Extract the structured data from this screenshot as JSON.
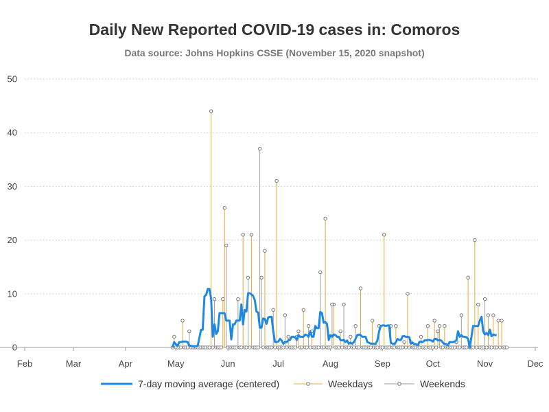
{
  "chart_data": {
    "type": "line",
    "title": "Daily New Reported COVID-19 cases in: Comoros",
    "subtitle": "Data source: Johns Hopkins CSSE (November 15, 2020 snapshot)",
    "xlabel": "",
    "ylabel": "",
    "x_range": [
      "2020-02-01",
      "2020-12-01"
    ],
    "ylim": [
      0,
      50
    ],
    "y_ticks": [
      0,
      10,
      20,
      30,
      40,
      50
    ],
    "x_ticks": [
      {
        "date": "2020-02-01",
        "label": "Feb"
      },
      {
        "date": "2020-03-01",
        "label": "Mar"
      },
      {
        "date": "2020-04-01",
        "label": "Apr"
      },
      {
        "date": "2020-05-01",
        "label": "May"
      },
      {
        "date": "2020-06-01",
        "label": "Jun"
      },
      {
        "date": "2020-07-01",
        "label": "Jul"
      },
      {
        "date": "2020-08-01",
        "label": "Aug"
      },
      {
        "date": "2020-09-01",
        "label": "Sep"
      },
      {
        "date": "2020-10-01",
        "label": "Oct"
      },
      {
        "date": "2020-11-01",
        "label": "Nov"
      },
      {
        "date": "2020-12-01",
        "label": "Dec"
      }
    ],
    "grid": "horizontal dotted",
    "legend_position": "bottom",
    "series": [
      {
        "name": "7-day moving average (centered)",
        "color": "#1e88e5",
        "style": "line",
        "points": [
          [
            "2020-04-29",
            0
          ],
          [
            "2020-04-30",
            1.0
          ],
          [
            "2020-05-01",
            0.6
          ],
          [
            "2020-05-02",
            0.3
          ],
          [
            "2020-05-03",
            1.0
          ],
          [
            "2020-05-04",
            1.0
          ],
          [
            "2020-05-05",
            1.1
          ],
          [
            "2020-05-06",
            1.1
          ],
          [
            "2020-05-07",
            1.1
          ],
          [
            "2020-05-08",
            1.0
          ],
          [
            "2020-05-09",
            0.4
          ],
          [
            "2020-05-10",
            0.3
          ],
          [
            "2020-05-12",
            0.2
          ],
          [
            "2020-05-14",
            0.3
          ],
          [
            "2020-05-16",
            3.3
          ],
          [
            "2020-05-17",
            3.3
          ],
          [
            "2020-05-18",
            9.5
          ],
          [
            "2020-05-19",
            9.8
          ],
          [
            "2020-05-20",
            10.9
          ],
          [
            "2020-05-21",
            10.9
          ],
          [
            "2020-05-22",
            9.0
          ],
          [
            "2020-05-23",
            2.0
          ],
          [
            "2020-05-24",
            4.3
          ],
          [
            "2020-05-25",
            2.5
          ],
          [
            "2020-05-26",
            3.0
          ],
          [
            "2020-05-27",
            6.4
          ],
          [
            "2020-05-28",
            6.4
          ],
          [
            "2020-05-29",
            6.4
          ],
          [
            "2020-05-30",
            6.4
          ],
          [
            "2020-05-31",
            5.0
          ],
          [
            "2020-06-01",
            5.0
          ],
          [
            "2020-06-02",
            5.0
          ],
          [
            "2020-06-03",
            1.5
          ],
          [
            "2020-06-04",
            4.3
          ],
          [
            "2020-06-05",
            4.3
          ],
          [
            "2020-06-06",
            5.0
          ],
          [
            "2020-06-07",
            5.0
          ],
          [
            "2020-06-08",
            5.0
          ],
          [
            "2020-06-09",
            8.0
          ],
          [
            "2020-06-10",
            4.3
          ],
          [
            "2020-06-11",
            7.0
          ],
          [
            "2020-06-12",
            6.7
          ],
          [
            "2020-06-13",
            10.1
          ],
          [
            "2020-06-14",
            10.1
          ],
          [
            "2020-06-15",
            9.9
          ],
          [
            "2020-06-16",
            9.6
          ],
          [
            "2020-06-17",
            8.8
          ],
          [
            "2020-06-18",
            6.7
          ],
          [
            "2020-06-19",
            6.5
          ],
          [
            "2020-06-20",
            3.7
          ],
          [
            "2020-06-21",
            3.7
          ],
          [
            "2020-06-22",
            5.4
          ],
          [
            "2020-06-23",
            5.3
          ],
          [
            "2020-06-24",
            4.4
          ],
          [
            "2020-06-25",
            5.6
          ],
          [
            "2020-06-26",
            5.7
          ],
          [
            "2020-06-27",
            5.7
          ],
          [
            "2020-06-28",
            3.0
          ],
          [
            "2020-06-29",
            1.0
          ],
          [
            "2020-06-30",
            1.0
          ],
          [
            "2020-07-01",
            1.1
          ],
          [
            "2020-07-02",
            1.6
          ],
          [
            "2020-07-03",
            1.3
          ],
          [
            "2020-07-04",
            0.7
          ],
          [
            "2020-07-05",
            1.0
          ],
          [
            "2020-07-06",
            1.0
          ],
          [
            "2020-07-07",
            1.3
          ],
          [
            "2020-07-08",
            1.4
          ],
          [
            "2020-07-09",
            2.0
          ],
          [
            "2020-07-10",
            2.0
          ],
          [
            "2020-07-11",
            1.9
          ],
          [
            "2020-07-12",
            1.4
          ],
          [
            "2020-07-13",
            2.3
          ],
          [
            "2020-07-14",
            2.0
          ],
          [
            "2020-07-15",
            2.0
          ],
          [
            "2020-07-16",
            2.0
          ],
          [
            "2020-07-17",
            2.4
          ],
          [
            "2020-07-18",
            2.3
          ],
          [
            "2020-07-19",
            2.0
          ],
          [
            "2020-07-20",
            3.0
          ],
          [
            "2020-07-21",
            2.0
          ],
          [
            "2020-07-22",
            2.0
          ],
          [
            "2020-07-23",
            4.0
          ],
          [
            "2020-07-24",
            3.6
          ],
          [
            "2020-07-25",
            3.6
          ],
          [
            "2020-07-26",
            6.6
          ],
          [
            "2020-07-27",
            6.4
          ],
          [
            "2020-07-28",
            4.6
          ],
          [
            "2020-07-29",
            4.7
          ],
          [
            "2020-07-30",
            4.4
          ],
          [
            "2020-07-31",
            1.4
          ],
          [
            "2020-08-01",
            2.3
          ],
          [
            "2020-08-02",
            2.0
          ],
          [
            "2020-08-03",
            2.4
          ],
          [
            "2020-08-04",
            2.3
          ],
          [
            "2020-08-05",
            2.0
          ],
          [
            "2020-08-06",
            2.0
          ],
          [
            "2020-08-07",
            1.4
          ],
          [
            "2020-08-08",
            1.3
          ],
          [
            "2020-08-09",
            1.4
          ],
          [
            "2020-08-10",
            1.0
          ],
          [
            "2020-08-11",
            1.3
          ],
          [
            "2020-08-12",
            0.7
          ],
          [
            "2020-08-13",
            0.9
          ],
          [
            "2020-08-14",
            0.7
          ],
          [
            "2020-08-15",
            1.0
          ],
          [
            "2020-08-16",
            1.6
          ],
          [
            "2020-08-17",
            2.3
          ],
          [
            "2020-08-18",
            2.4
          ],
          [
            "2020-08-19",
            2.3
          ],
          [
            "2020-08-20",
            2.0
          ],
          [
            "2020-08-21",
            2.0
          ],
          [
            "2020-08-22",
            2.0
          ],
          [
            "2020-08-23",
            1.0
          ],
          [
            "2020-08-24",
            0.9
          ],
          [
            "2020-08-25",
            0.7
          ],
          [
            "2020-08-26",
            0.7
          ],
          [
            "2020-08-27",
            0.7
          ],
          [
            "2020-08-28",
            0.7
          ],
          [
            "2020-08-29",
            1.3
          ],
          [
            "2020-08-30",
            3.0
          ],
          [
            "2020-08-31",
            4.0
          ],
          [
            "2020-09-01",
            4.1
          ],
          [
            "2020-09-02",
            4.1
          ],
          [
            "2020-09-03",
            4.0
          ],
          [
            "2020-09-04",
            4.1
          ],
          [
            "2020-09-05",
            4.1
          ],
          [
            "2020-09-06",
            0.9
          ],
          [
            "2020-09-07",
            0.7
          ],
          [
            "2020-09-08",
            0.6
          ],
          [
            "2020-09-09",
            1.0
          ],
          [
            "2020-09-10",
            1.6
          ],
          [
            "2020-09-11",
            1.4
          ],
          [
            "2020-09-12",
            1.4
          ],
          [
            "2020-09-13",
            2.1
          ],
          [
            "2020-09-14",
            2.1
          ],
          [
            "2020-09-15",
            2.0
          ],
          [
            "2020-09-16",
            2.0
          ],
          [
            "2020-09-17",
            1.9
          ],
          [
            "2020-09-18",
            0.7
          ],
          [
            "2020-09-19",
            0.9
          ],
          [
            "2020-09-20",
            0.6
          ],
          [
            "2020-09-21",
            0.6
          ],
          [
            "2020-09-22",
            0.4
          ],
          [
            "2020-09-23",
            1.0
          ],
          [
            "2020-09-24",
            1.1
          ],
          [
            "2020-09-25",
            1.0
          ],
          [
            "2020-09-26",
            1.3
          ],
          [
            "2020-09-27",
            1.3
          ],
          [
            "2020-09-28",
            1.4
          ],
          [
            "2020-09-29",
            1.4
          ],
          [
            "2020-09-30",
            1.3
          ],
          [
            "2020-10-01",
            1.1
          ],
          [
            "2020-10-02",
            1.6
          ],
          [
            "2020-10-03",
            1.6
          ],
          [
            "2020-10-04",
            1.3
          ],
          [
            "2020-10-05",
            1.4
          ],
          [
            "2020-10-06",
            1.3
          ],
          [
            "2020-10-07",
            0.9
          ],
          [
            "2020-10-08",
            0.6
          ],
          [
            "2020-10-09",
            0.6
          ],
          [
            "2020-10-10",
            0.4
          ],
          [
            "2020-10-11",
            1.0
          ],
          [
            "2020-10-12",
            1.0
          ],
          [
            "2020-10-13",
            1.0
          ],
          [
            "2020-10-14",
            1.1
          ],
          [
            "2020-10-15",
            1.3
          ],
          [
            "2020-10-16",
            3.0
          ],
          [
            "2020-10-17",
            2.0
          ],
          [
            "2020-10-18",
            2.3
          ],
          [
            "2020-10-19",
            2.0
          ],
          [
            "2020-10-20",
            2.0
          ],
          [
            "2020-10-21",
            1.9
          ],
          [
            "2020-10-22",
            1.6
          ],
          [
            "2020-10-23",
            0.0
          ],
          [
            "2020-10-24",
            2.0
          ],
          [
            "2020-10-25",
            4.0
          ],
          [
            "2020-10-26",
            4.0
          ],
          [
            "2020-10-27",
            4.0
          ],
          [
            "2020-10-28",
            4.0
          ],
          [
            "2020-10-29",
            5.0
          ],
          [
            "2020-10-30",
            5.7
          ],
          [
            "2020-10-31",
            3.0
          ],
          [
            "2020-11-01",
            2.4
          ],
          [
            "2020-11-02",
            2.7
          ],
          [
            "2020-11-03",
            2.3
          ],
          [
            "2020-11-04",
            3.3
          ],
          [
            "2020-11-05",
            2.1
          ],
          [
            "2020-11-06",
            2.4
          ],
          [
            "2020-11-07",
            2.3
          ],
          [
            "2020-11-08",
            2.3
          ]
        ]
      },
      {
        "name": "Weekdays",
        "color": "#e8a735",
        "style": "needle",
        "points": [
          [
            "2020-04-30",
            2
          ],
          [
            "2020-05-05",
            5
          ],
          [
            "2020-05-22",
            44
          ],
          [
            "2020-05-29",
            9
          ],
          [
            "2020-05-30",
            26
          ],
          [
            "2020-06-10",
            21
          ],
          [
            "2020-06-15",
            21
          ],
          [
            "2020-06-23",
            18
          ],
          [
            "2020-06-30",
            31
          ],
          [
            "2020-07-07",
            2
          ],
          [
            "2020-07-13",
            3
          ],
          [
            "2020-07-16",
            7
          ],
          [
            "2020-07-21",
            3
          ],
          [
            "2020-07-29",
            24
          ],
          [
            "2020-08-03",
            8
          ],
          [
            "2020-08-07",
            3
          ],
          [
            "2020-08-13",
            2
          ],
          [
            "2020-08-19",
            11
          ],
          [
            "2020-08-26",
            5
          ],
          [
            "2020-09-02",
            21
          ],
          [
            "2020-09-09",
            4
          ],
          [
            "2020-09-14",
            1
          ],
          [
            "2020-09-16",
            10
          ],
          [
            "2020-09-18",
            1
          ],
          [
            "2020-09-24",
            2
          ],
          [
            "2020-09-28",
            4
          ],
          [
            "2020-10-02",
            5
          ],
          [
            "2020-10-05",
            4
          ],
          [
            "2020-10-08",
            4
          ],
          [
            "2020-10-15",
            1
          ],
          [
            "2020-10-22",
            13
          ],
          [
            "2020-10-26",
            20
          ],
          [
            "2020-10-28",
            8
          ],
          [
            "2020-11-03",
            6
          ],
          [
            "2020-11-06",
            6
          ],
          [
            "2020-11-09",
            5
          ],
          [
            "2020-11-11",
            5
          ]
        ]
      },
      {
        "name": "Weekends",
        "color": "#9e9e9e",
        "style": "needle",
        "points": [
          [
            "2020-05-09",
            3
          ],
          [
            "2020-05-24",
            9
          ],
          [
            "2020-05-31",
            19
          ],
          [
            "2020-06-07",
            9
          ],
          [
            "2020-06-13",
            13
          ],
          [
            "2020-06-20",
            37
          ],
          [
            "2020-06-21",
            13
          ],
          [
            "2020-06-28",
            7
          ],
          [
            "2020-07-05",
            6
          ],
          [
            "2020-07-12",
            2
          ],
          [
            "2020-07-19",
            4
          ],
          [
            "2020-07-26",
            14
          ],
          [
            "2020-08-02",
            8
          ],
          [
            "2020-08-09",
            8
          ],
          [
            "2020-08-16",
            4
          ],
          [
            "2020-08-30",
            4
          ],
          [
            "2020-09-06",
            4
          ],
          [
            "2020-10-04",
            3
          ],
          [
            "2020-10-18",
            6
          ],
          [
            "2020-11-01",
            9
          ]
        ]
      }
    ]
  }
}
